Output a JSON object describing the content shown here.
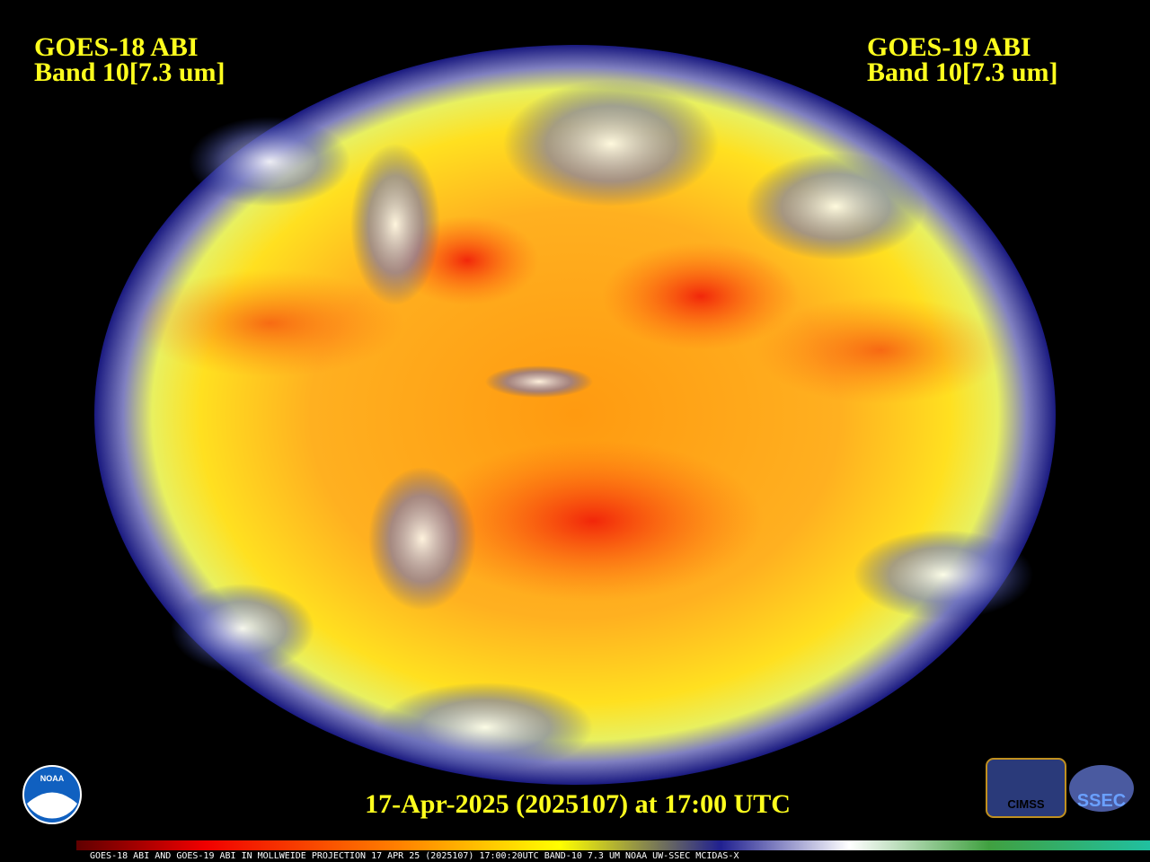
{
  "header": {
    "left": [
      "GOES-18 ABI",
      "Band 10[7.3 um]"
    ],
    "right": [
      "GOES-19 ABI",
      "Band 10[7.3 um]"
    ]
  },
  "timestamp": "17-Apr-2025 (2025107) at 17:00 UTC",
  "footer": "GOES-18 ABI AND GOES-19 ABI IN MOLLWEIDE PROJECTION 17 APR 25 (2025107) 17:00:20UTC BAND-10 7.3 UM NOAA UW-SSEC MCIDAS-X",
  "logos": [
    "NOAA",
    "CIMSS",
    "SSEC"
  ]
}
